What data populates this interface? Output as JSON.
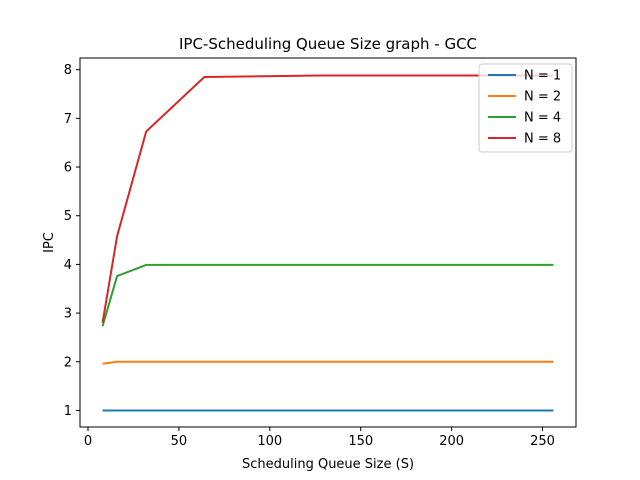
{
  "chart_data": {
    "type": "line",
    "title": "IPC-Scheduling Queue Size graph - GCC",
    "xlabel": "Scheduling Queue Size (S)",
    "ylabel": "IPC",
    "xlim": [
      -4.4,
      268.4
    ],
    "ylim": [
      0.66,
      8.24
    ],
    "xticks": [
      0,
      50,
      100,
      150,
      200,
      250
    ],
    "yticks": [
      1,
      2,
      3,
      4,
      5,
      6,
      7,
      8
    ],
    "x": [
      8,
      16,
      32,
      64,
      128,
      256
    ],
    "series": [
      {
        "name": "N = 1",
        "color": "#1f77b4",
        "values": [
          1.0,
          1.0,
          1.0,
          1.0,
          1.0,
          1.0
        ]
      },
      {
        "name": "N = 2",
        "color": "#ff7f0e",
        "values": [
          1.96,
          2.0,
          2.0,
          2.0,
          2.0,
          2.0
        ]
      },
      {
        "name": "N = 4",
        "color": "#2ca02c",
        "values": [
          2.73,
          3.76,
          3.99,
          3.99,
          3.99,
          3.99
        ]
      },
      {
        "name": "N = 8",
        "color": "#d62728",
        "values": [
          2.8,
          4.58,
          6.73,
          7.85,
          7.88,
          7.88
        ]
      }
    ],
    "legend": "top-right",
    "grid": false
  }
}
